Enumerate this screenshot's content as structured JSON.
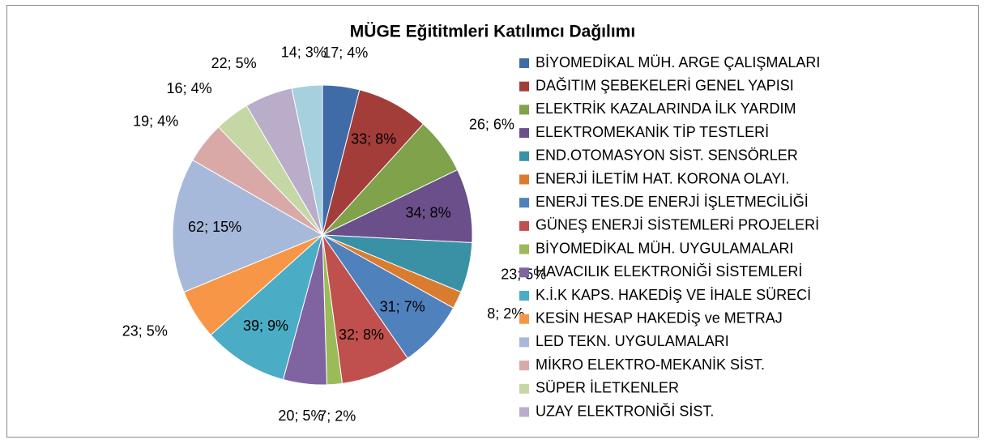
{
  "chart_data": {
    "type": "pie",
    "title": "MÜGE Eğititmleri Katılımcı Dağılımı",
    "categories": [
      "BİYOMEDİKAL MÜH. ARGE ÇALIŞMALARI",
      "DAĞITIM ŞEBEKELERİ GENEL YAPISI",
      "ELEKTRİK KAZALARINDA İLK YARDIM",
      "ELEKTROMEKANİK TİP TESTLERİ",
      "END.OTOMASYON SİST. SENSÖRLER",
      "ENERJİ İLETİM HAT. KORONA OLAYI.",
      "ENERJİ TES.DE ENERJİ İŞLETMECİLİĞİ",
      "GÜNEŞ ENERJİ SİSTEMLERİ PROJELERİ",
      "BİYOMEDİKAL MÜH. UYGULAMALARI",
      "HAVACILIK ELEKTRONİĞİ SİSTEMLERİ",
      "K.İ.K KAPS. HAKEDİŞ VE İHALE SÜRECİ",
      "KESİN HESAP HAKEDİŞ ve METRAJ",
      "LED TEKN. UYGULAMALARI",
      "MİKRO ELEKTRO-MEKANİK SİST.",
      "SÜPER İLETKENLER",
      "UZAY ELEKTRONİĞİ SİST.",
      null
    ],
    "values": [
      17,
      33,
      26,
      34,
      23,
      8,
      31,
      32,
      7,
      20,
      39,
      23,
      62,
      19,
      16,
      22,
      14
    ],
    "value_labels": [
      "17; 4%",
      "33; 8%",
      "26; 6%",
      "34; 8%",
      "23; 5%",
      "8; 2%",
      "31; 7%",
      "32; 8%",
      "7; 2%",
      "20; 5%",
      "39; 9%",
      "23; 5%",
      "62; 15%",
      "19; 4%",
      "16; 4%",
      "22; 5%",
      "14; 3%"
    ],
    "colors": [
      "#3F6CA6",
      "#A33D3A",
      "#7FA24A",
      "#6A4F8A",
      "#3A91A6",
      "#DA7C30",
      "#4F81BD",
      "#C0504D",
      "#9BBB59",
      "#8064A2",
      "#4BACC6",
      "#F79646",
      "#A7B9DA",
      "#D9A9A8",
      "#C6D7A6",
      "#B9ADCA",
      "#A6D0DE"
    ],
    "legend": "right"
  }
}
